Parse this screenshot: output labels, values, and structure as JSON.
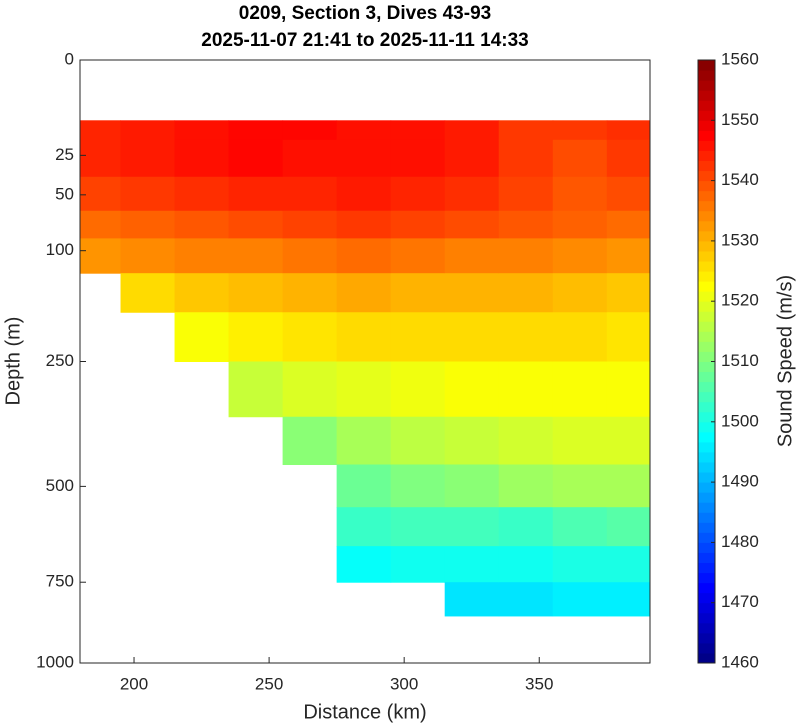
{
  "chart_data": {
    "type": "contour",
    "title": "0209, Section 3, Dives 43-93",
    "subtitle": "2025-11-07 21:41 to 2025-11-11 14:33",
    "xlabel": "Distance (km)",
    "ylabel": "Depth (m)",
    "colorbar_label": "Sound Speed (m/s)",
    "colormap": "jet",
    "yscale": "sqrt",
    "yreverse": true,
    "xlim": [
      180,
      391
    ],
    "xticks": [
      200,
      250,
      300,
      350
    ],
    "ylim": [
      0,
      1000
    ],
    "yticks": [
      0,
      25,
      50,
      100,
      250,
      500,
      750,
      1000
    ],
    "clim": [
      1460,
      1560
    ],
    "cticks": [
      1460,
      1470,
      1480,
      1490,
      1500,
      1510,
      1520,
      1530,
      1540,
      1550,
      1560
    ],
    "x": [
      185,
      205,
      225,
      245,
      265,
      285,
      305,
      325,
      345,
      365,
      385
    ],
    "y": [
      10,
      25,
      50,
      75,
      100,
      150,
      200,
      300,
      400,
      500,
      600,
      700,
      800,
      900
    ],
    "values": [
      [
        1544,
        1544,
        1541,
        1537,
        1533,
        null,
        null,
        null,
        null,
        null,
        null,
        null,
        null,
        null
      ],
      [
        1545,
        1545,
        1542,
        1538,
        1534,
        1526,
        null,
        null,
        null,
        null,
        null,
        null,
        null,
        null
      ],
      [
        1546,
        1546,
        1543,
        1539,
        1535,
        1528,
        1522,
        null,
        null,
        null,
        null,
        null,
        null,
        null
      ],
      [
        1547,
        1547,
        1544,
        1540,
        1535,
        1529,
        1524,
        1517,
        null,
        null,
        null,
        null,
        null,
        null
      ],
      [
        1547,
        1546,
        1544,
        1541,
        1536,
        1530,
        1525,
        1519,
        1511,
        null,
        null,
        null,
        null,
        null
      ],
      [
        1546,
        1546,
        1545,
        1542,
        1537,
        1531,
        1526,
        1520,
        1514,
        1508,
        1503,
        1498,
        null,
        null
      ],
      [
        1546,
        1546,
        1544,
        1541,
        1536,
        1530,
        1526,
        1521,
        1516,
        1510,
        1504,
        1499,
        null,
        null
      ],
      [
        1545,
        1545,
        1543,
        1540,
        1535,
        1530,
        1526,
        1522,
        1517,
        1511,
        1504,
        1499,
        1495,
        null
      ],
      [
        1542,
        1542,
        1541,
        1539,
        1535,
        1530,
        1526,
        1522,
        1518,
        1513,
        1503,
        1499,
        1495,
        null
      ],
      [
        1542,
        1540,
        1539,
        1538,
        1534,
        1529,
        1526,
        1522,
        1519,
        1514,
        1505,
        1500,
        1496,
        null
      ],
      [
        1543,
        1542,
        1540,
        1537,
        1533,
        1528,
        1525,
        1522,
        1519,
        1514,
        1506,
        1500,
        1496,
        null
      ]
    ]
  }
}
